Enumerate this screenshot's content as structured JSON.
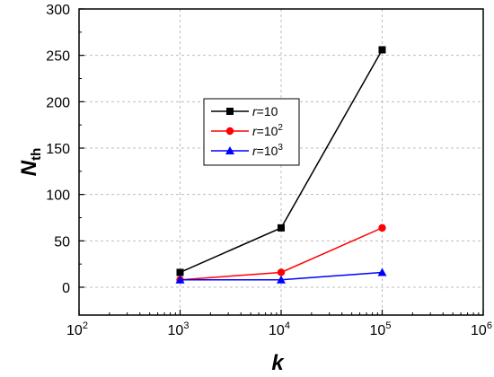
{
  "chart_data": {
    "type": "line",
    "x_scale": "log",
    "xlim": [
      100,
      1000000
    ],
    "ylim": [
      -30,
      300
    ],
    "x": [
      1000,
      10000,
      100000
    ],
    "xlabel": "k",
    "ylabel": {
      "base": "N",
      "sub": "th"
    },
    "x_ticks": [
      {
        "value": 100,
        "base": "10",
        "exp": "2"
      },
      {
        "value": 1000,
        "base": "10",
        "exp": "3"
      },
      {
        "value": 10000,
        "base": "10",
        "exp": "4"
      },
      {
        "value": 100000,
        "base": "10",
        "exp": "5"
      },
      {
        "value": 1000000,
        "base": "10",
        "exp": "6"
      }
    ],
    "y_ticks": [
      0,
      50,
      100,
      150,
      200,
      250,
      300
    ],
    "grid": true,
    "legend_position": "center-left",
    "series": [
      {
        "name": "r=10",
        "name_base": "=10",
        "name_exp": "",
        "values": [
          16,
          64,
          256
        ],
        "color": "#000000",
        "marker": "square"
      },
      {
        "name": "r=10^2",
        "name_base": "=10",
        "name_exp": "2",
        "values": [
          8,
          16,
          64
        ],
        "color": "#ff0000",
        "marker": "circle"
      },
      {
        "name": "r=10^3",
        "name_base": "=10",
        "name_exp": "3",
        "values": [
          8,
          8,
          16
        ],
        "color": "#0000ff",
        "marker": "triangle"
      }
    ],
    "legend_var": "r"
  }
}
